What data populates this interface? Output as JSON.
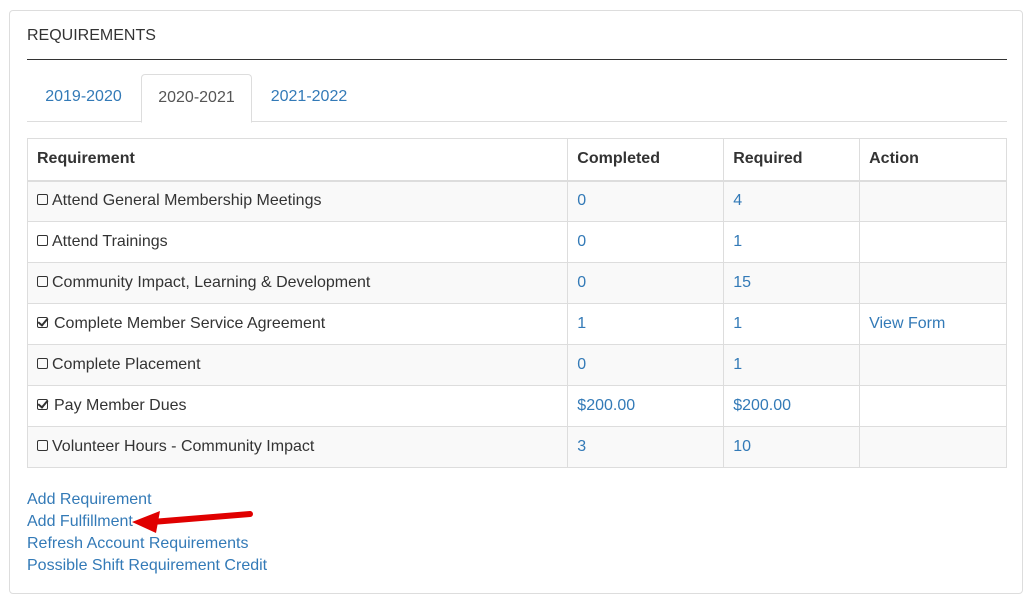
{
  "panel": {
    "heading": "REQUIREMENTS"
  },
  "tabs": [
    {
      "label": "2019-2020",
      "active": false
    },
    {
      "label": "2020-2021",
      "active": true
    },
    {
      "label": "2021-2022",
      "active": false
    }
  ],
  "table": {
    "headers": [
      "Requirement",
      "Completed",
      "Required",
      "Action"
    ],
    "rows": [
      {
        "checked": false,
        "requirement": "Attend General Membership Meetings",
        "completed": "0",
        "required": "4",
        "action": ""
      },
      {
        "checked": false,
        "requirement": "Attend Trainings",
        "completed": "0",
        "required": "1",
        "action": ""
      },
      {
        "checked": false,
        "requirement": "Community Impact, Learning & Development",
        "completed": "0",
        "required": "15",
        "action": ""
      },
      {
        "checked": true,
        "requirement": "Complete Member Service Agreement",
        "completed": "1",
        "required": "1",
        "action": "View Form"
      },
      {
        "checked": false,
        "requirement": "Complete Placement",
        "completed": "0",
        "required": "1",
        "action": ""
      },
      {
        "checked": true,
        "requirement": "Pay Member Dues",
        "completed": "$200.00",
        "required": "$200.00",
        "action": ""
      },
      {
        "checked": false,
        "requirement": "Volunteer Hours - Community Impact",
        "completed": "3",
        "required": "10",
        "action": ""
      }
    ]
  },
  "links": {
    "add_requirement": "Add Requirement",
    "add_fulfillment": "Add Fulfillment",
    "refresh_account_requirements": "Refresh Account Requirements",
    "possible_shift_credit": "Possible Shift Requirement Credit"
  },
  "colors": {
    "link": "#337ab7",
    "annotation_arrow": "#e00000"
  }
}
